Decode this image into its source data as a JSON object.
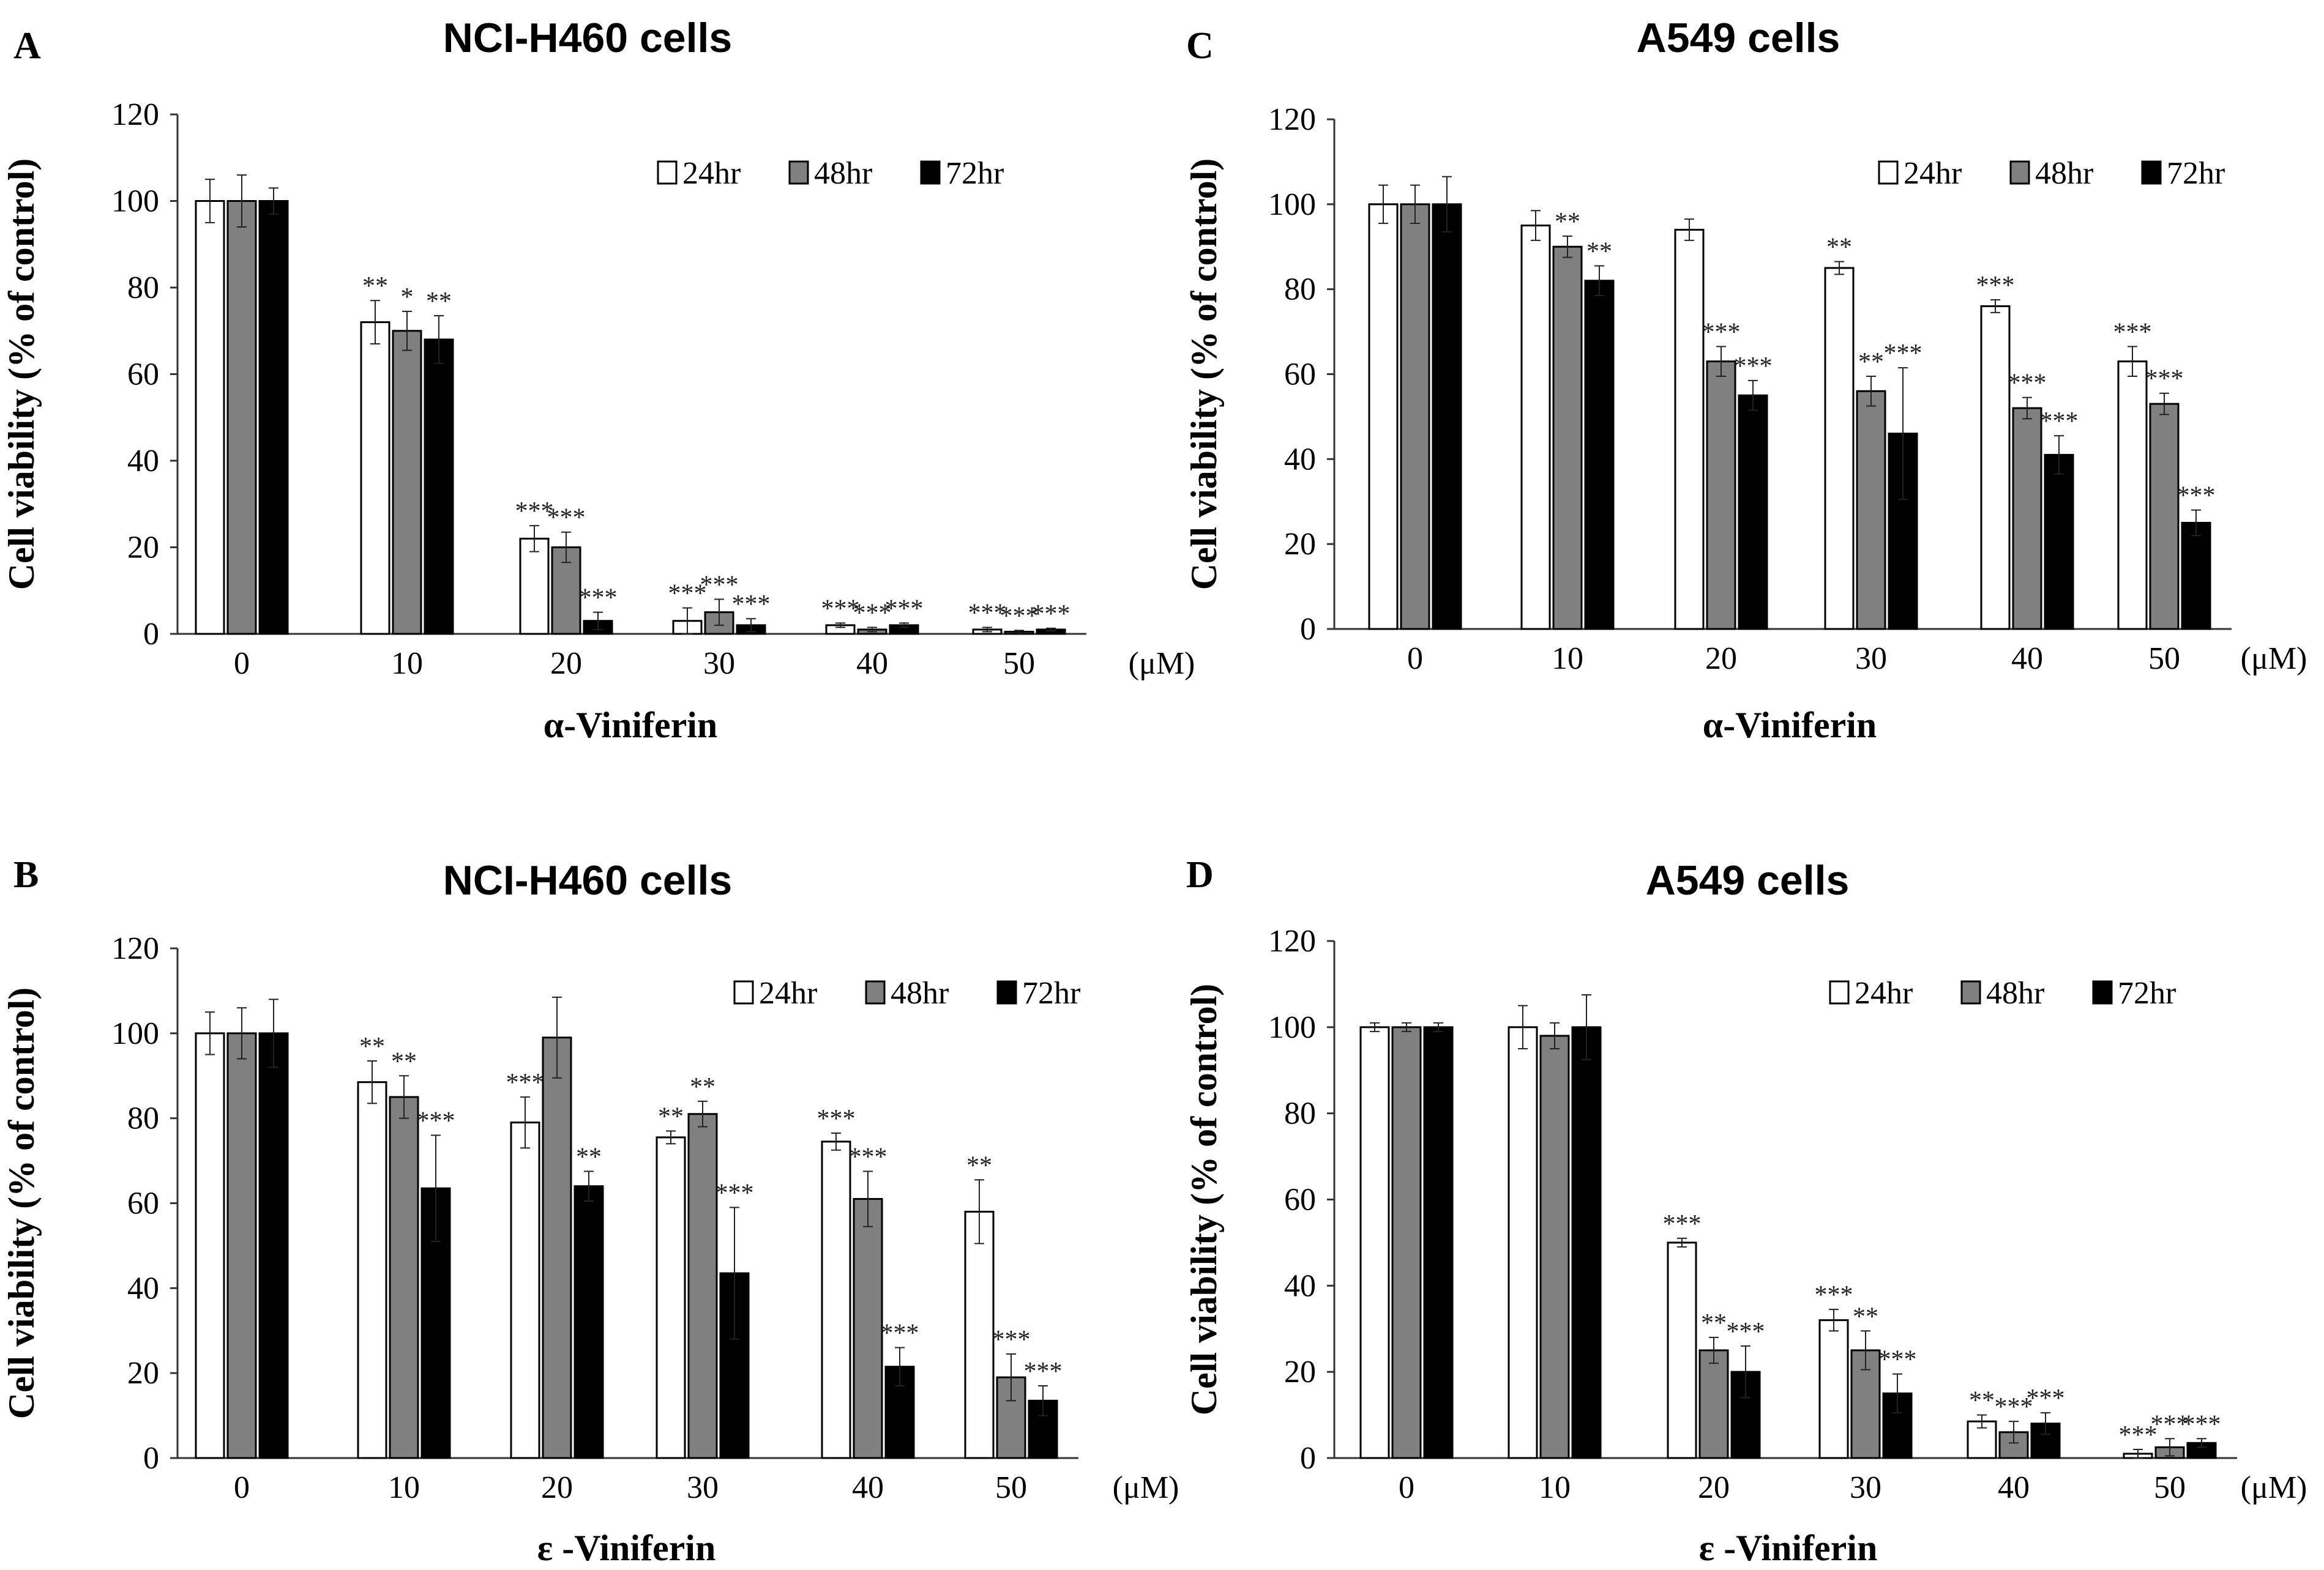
{
  "chart_data": [
    {
      "type": "bar",
      "panel": "A",
      "title": "NCI-H460 cells",
      "xlabel": "α-Viniferin",
      "ylabel": "Cell viability (% of control)",
      "unit": "(μM)",
      "categories": [
        "0",
        "10",
        "20",
        "30",
        "40",
        "50"
      ],
      "ylim": [
        0,
        120
      ],
      "yticks": [
        "0",
        "20",
        "40",
        "60",
        "80",
        "100",
        "120"
      ],
      "legend_position": "top-right",
      "series": [
        {
          "name": "24hr",
          "color": "#ffffff",
          "values": [
            100,
            72,
            22,
            3,
            2,
            1
          ],
          "errors": [
            5,
            5,
            3,
            3,
            0.5,
            0.5
          ],
          "sig": [
            "",
            "**",
            "***",
            "***",
            "***",
            "***"
          ]
        },
        {
          "name": "48hr",
          "color": "#808080",
          "values": [
            100,
            70,
            20,
            5,
            1,
            0.5
          ],
          "errors": [
            6,
            4.5,
            3.5,
            3,
            0.5,
            0.3
          ],
          "sig": [
            "",
            "*",
            "***",
            "***",
            "***",
            "***"
          ]
        },
        {
          "name": "72hr",
          "color": "#000000",
          "values": [
            100,
            68,
            3,
            2,
            2,
            1
          ],
          "errors": [
            3,
            5.5,
            2,
            1.5,
            0.5,
            0.3
          ],
          "sig": [
            "",
            "**",
            "***",
            "***",
            "***",
            "***"
          ]
        }
      ]
    },
    {
      "type": "bar",
      "panel": "B",
      "title": "NCI-H460 cells",
      "xlabel": "ε -Viniferin",
      "ylabel": "Cell viability (% of control)",
      "unit": "(μM)",
      "categories": [
        "0",
        "10",
        "20",
        "30",
        "40",
        "50"
      ],
      "ylim": [
        0,
        120
      ],
      "yticks": [
        "0",
        "20",
        "40",
        "60",
        "80",
        "100",
        "120"
      ],
      "legend_position": "top-right",
      "series": [
        {
          "name": "24hr",
          "color": "#ffffff",
          "values": [
            100,
            88.5,
            79,
            75.5,
            74.5,
            58
          ],
          "errors": [
            5,
            5,
            6,
            1.5,
            2,
            7.5
          ],
          "sig": [
            "",
            "**",
            "***",
            "**",
            "***",
            "**"
          ]
        },
        {
          "name": "48hr",
          "color": "#808080",
          "values": [
            100,
            85,
            99,
            81,
            61,
            19
          ],
          "errors": [
            6,
            5,
            9.5,
            3,
            6.5,
            5.5
          ],
          "sig": [
            "",
            "**",
            "",
            "**",
            "***",
            "***"
          ]
        },
        {
          "name": "72hr",
          "color": "#000000",
          "values": [
            100,
            63.5,
            64,
            43.5,
            21.5,
            13.5
          ],
          "errors": [
            8,
            12.5,
            3.5,
            15.5,
            4.5,
            3.5
          ],
          "sig": [
            "",
            "***",
            "**",
            "***",
            "***",
            "***"
          ]
        }
      ]
    },
    {
      "type": "bar",
      "panel": "C",
      "title": "A549  cells",
      "xlabel": "α-Viniferin",
      "ylabel": "Cell viability (% of control)",
      "unit": "(μM)",
      "categories": [
        "0",
        "10",
        "20",
        "30",
        "40",
        "50"
      ],
      "ylim": [
        0,
        120
      ],
      "yticks": [
        "0",
        "20",
        "40",
        "60",
        "80",
        "100",
        "120"
      ],
      "legend_position": "top-right",
      "series": [
        {
          "name": "24hr",
          "color": "#ffffff",
          "values": [
            100,
            95,
            94,
            85,
            76,
            63
          ],
          "errors": [
            4.5,
            3.5,
            2.5,
            1.5,
            1.5,
            3.5
          ],
          "sig": [
            "",
            "",
            "",
            "**",
            "***",
            "***"
          ]
        },
        {
          "name": "48hr",
          "color": "#808080",
          "values": [
            100,
            90,
            63,
            56,
            52,
            53
          ],
          "errors": [
            4.5,
            2.5,
            3.5,
            3.5,
            2.5,
            2.5
          ],
          "sig": [
            "",
            "**",
            "***",
            "**",
            "***",
            "***"
          ]
        },
        {
          "name": "72hr",
          "color": "#000000",
          "values": [
            100,
            82,
            55,
            46,
            41,
            25
          ],
          "errors": [
            6.5,
            3.5,
            3.5,
            15.5,
            4.5,
            3
          ],
          "sig": [
            "",
            "**",
            "***",
            "***",
            "***",
            "***"
          ]
        }
      ]
    },
    {
      "type": "bar",
      "panel": "D",
      "title": "A549  cells",
      "xlabel": "ε -Viniferin",
      "ylabel": "Cell viability (% of control)",
      "unit": "(μM)",
      "categories": [
        "0",
        "10",
        "20",
        "30",
        "40",
        "50"
      ],
      "ylim": [
        0,
        120
      ],
      "yticks": [
        "0",
        "20",
        "40",
        "60",
        "80",
        "100",
        "120"
      ],
      "legend_position": "top-right",
      "series": [
        {
          "name": "24hr",
          "color": "#ffffff",
          "values": [
            100,
            100,
            50,
            32,
            8.5,
            1
          ],
          "errors": [
            1,
            5,
            1,
            2.5,
            1.5,
            1
          ],
          "sig": [
            "",
            "",
            "***",
            "***",
            "**",
            "***"
          ]
        },
        {
          "name": "48hr",
          "color": "#808080",
          "values": [
            100,
            98,
            25,
            25,
            6,
            2.5
          ],
          "errors": [
            1,
            3,
            3,
            4.5,
            2.5,
            2
          ],
          "sig": [
            "",
            "",
            "**",
            "**",
            "***",
            "***"
          ]
        },
        {
          "name": "72hr",
          "color": "#000000",
          "values": [
            100,
            100,
            20,
            15,
            8,
            3.5
          ],
          "errors": [
            1,
            7.5,
            6,
            4.5,
            2.5,
            1
          ],
          "sig": [
            "",
            "",
            "***",
            "***",
            "***",
            "***"
          ]
        }
      ]
    }
  ]
}
